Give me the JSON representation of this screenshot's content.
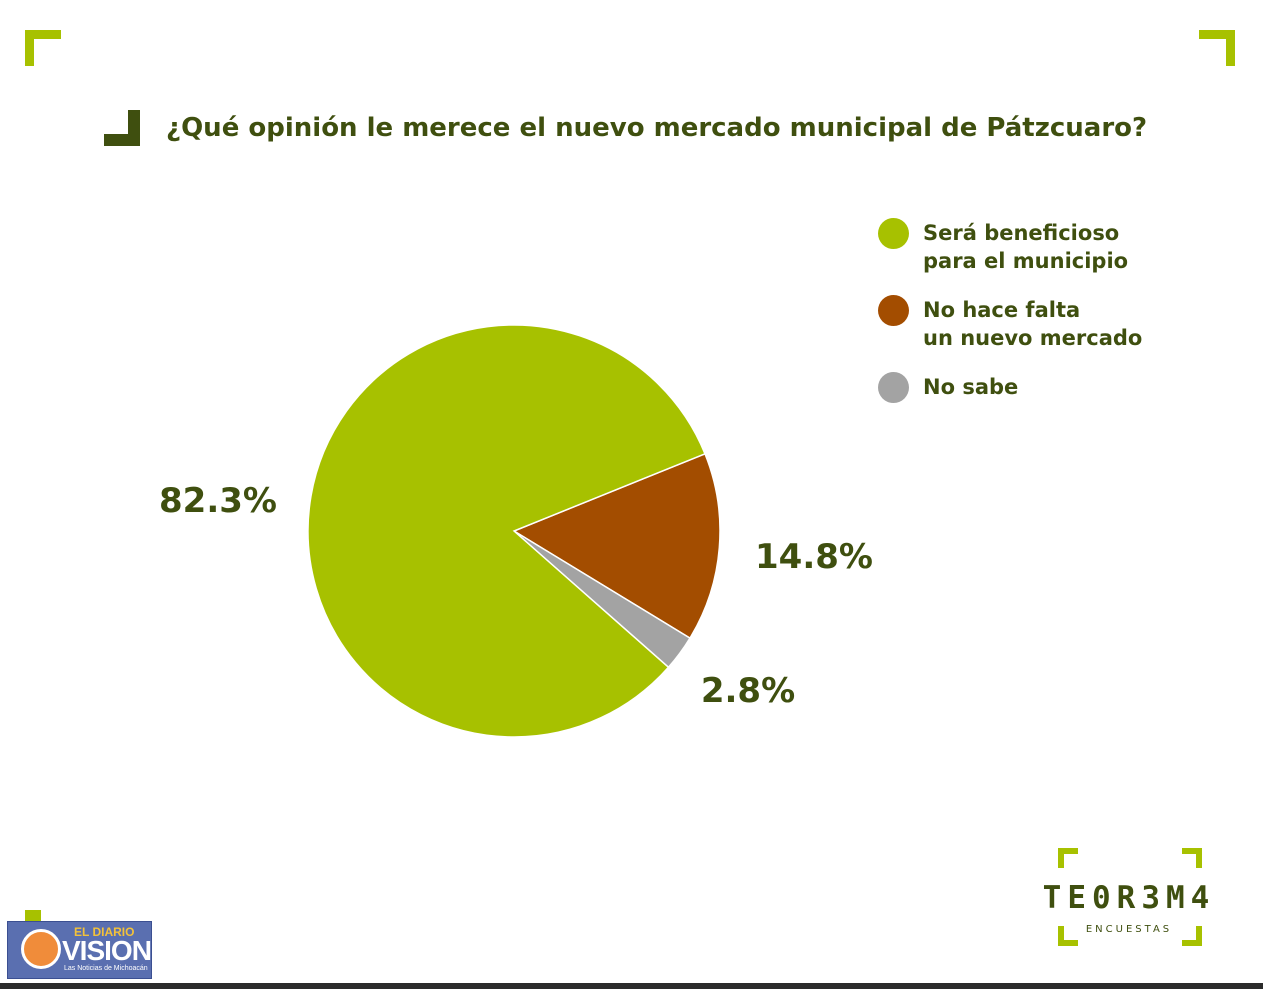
{
  "chart_data": {
    "type": "pie",
    "title": "¿Qué opinión le merece el nuevo mercado municipal de Pátzcuaro?",
    "categories": [
      "Será beneficioso\npara el municipio",
      "No hace falta\nun nuevo mercado",
      "No sabe"
    ],
    "values": [
      82.3,
      14.8,
      2.8
    ],
    "value_labels": [
      "82.3%",
      "14.8%",
      "2.8%"
    ],
    "colors": [
      "#a7c100",
      "#a34d00",
      "#a3a3a3"
    ],
    "legend_position": "right"
  },
  "branding": {
    "logo_word": "TE0R3M4",
    "logo_sub": "ENCUESTAS",
    "watermark_small": "EL DIARIO",
    "watermark_big": "VISION",
    "watermark_tagline": "Las Noticias de Michoacán"
  }
}
